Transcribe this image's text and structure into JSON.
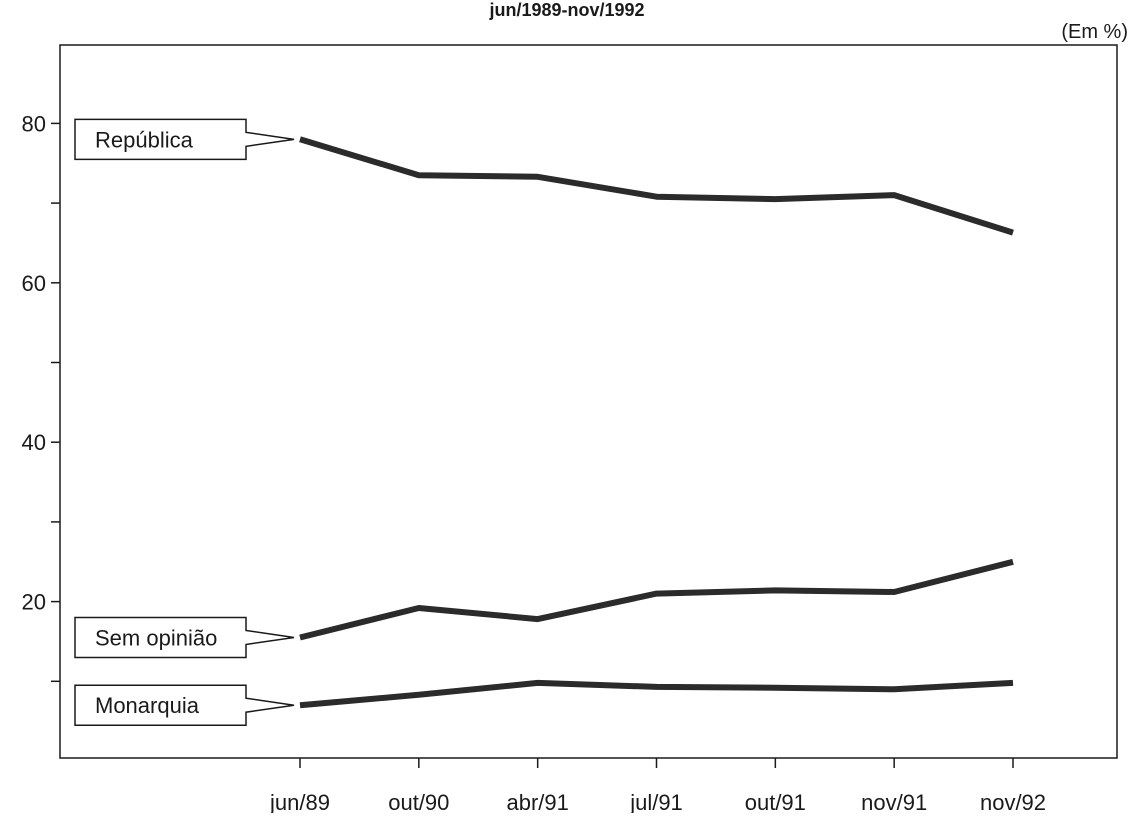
{
  "chart_data": {
    "type": "line",
    "title": "jun/1989-nov/1992",
    "unit_label": "(Em %)",
    "categories": [
      "jun/89",
      "out/90",
      "abr/91",
      "jul/91",
      "out/91",
      "nov/91",
      "nov/92"
    ],
    "yticks": [
      20,
      40,
      60,
      80
    ],
    "ylim": [
      0,
      90
    ],
    "grid": false,
    "series": [
      {
        "name": "República",
        "values": [
          78,
          73.5,
          73.3,
          70.8,
          70.5,
          71,
          66.3
        ]
      },
      {
        "name": "Sem opinião",
        "values": [
          15.5,
          19.2,
          17.8,
          21,
          21.4,
          21.2,
          25
        ]
      },
      {
        "name": "Monarquia",
        "values": [
          7,
          8.3,
          9.8,
          9.3,
          9.2,
          9,
          9.8
        ]
      }
    ],
    "colors": {
      "line": "#2b2b2b",
      "axis": "#1a1a1a",
      "background": "#ffffff"
    }
  }
}
